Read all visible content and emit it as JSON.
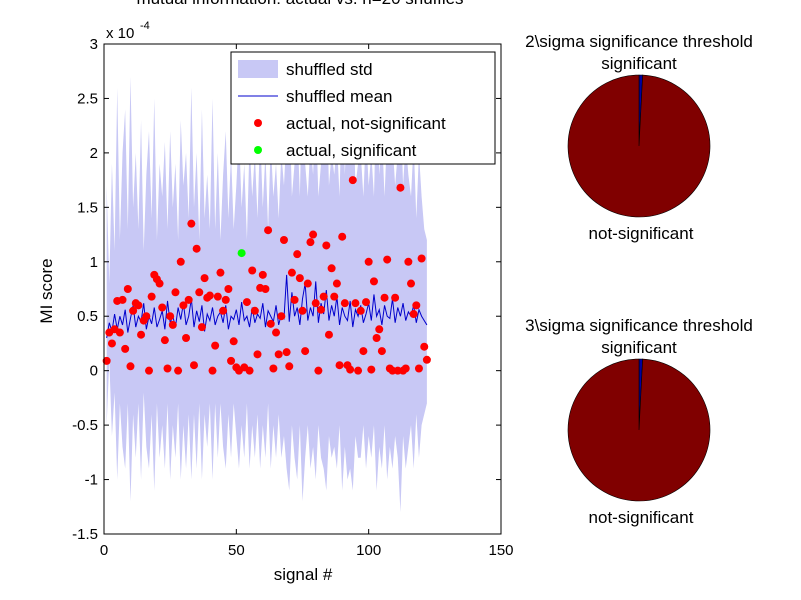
{
  "chart_data": [
    {
      "type": "line",
      "title": "mutual information: actual vs. n=20 shuffles",
      "xlabel": "signal #",
      "ylabel": "MI score",
      "y_exponent_label": "x 10",
      "y_exponent_power": "-4",
      "xlim": [
        0,
        150
      ],
      "ylim": [
        -1.5,
        3
      ],
      "x_ticks": [
        0,
        50,
        100,
        150
      ],
      "x_tick_labels": [
        "0",
        "50",
        "100",
        "150"
      ],
      "y_ticks": [
        -1.5,
        -1,
        -0.5,
        0,
        0.5,
        1,
        1.5,
        2,
        2.5,
        3
      ],
      "y_tick_labels": [
        "-1.5",
        "-1",
        "-0.5",
        "0",
        "0.5",
        "1",
        "1.5",
        "2",
        "2.5",
        "3"
      ],
      "legend": {
        "placement": "top-right",
        "entries": [
          "shuffled std",
          "shuffled mean",
          "actual, not-significant",
          "actual, significant"
        ]
      },
      "colors": {
        "std_band": "#c8c8f5",
        "mean_line": "#0000cc",
        "not_significant": "#ff0000",
        "significant": "#00ff00"
      },
      "series": [
        {
          "name": "shuffled mean",
          "x": [
            1,
            2,
            3,
            4,
            5,
            6,
            7,
            8,
            9,
            10,
            11,
            12,
            13,
            14,
            15,
            16,
            17,
            18,
            19,
            20,
            21,
            22,
            23,
            24,
            25,
            26,
            27,
            28,
            29,
            30,
            31,
            32,
            33,
            34,
            35,
            36,
            37,
            38,
            39,
            40,
            41,
            42,
            43,
            44,
            45,
            46,
            47,
            48,
            49,
            50,
            51,
            52,
            53,
            54,
            55,
            56,
            57,
            58,
            59,
            60,
            61,
            62,
            63,
            64,
            65,
            66,
            67,
            68,
            69,
            70,
            71,
            72,
            73,
            74,
            75,
            76,
            77,
            78,
            79,
            80,
            81,
            82,
            83,
            84,
            85,
            86,
            87,
            88,
            89,
            90,
            91,
            92,
            93,
            94,
            95,
            96,
            97,
            98,
            99,
            100,
            101,
            102,
            103,
            104,
            105,
            106,
            107,
            108,
            109,
            110,
            111,
            112,
            113,
            114,
            115,
            116,
            117,
            118,
            119,
            120,
            121,
            122
          ],
          "values": [
            0.3,
            0.44,
            0.36,
            0.52,
            0.38,
            0.5,
            0.42,
            0.56,
            0.35,
            0.48,
            0.6,
            0.4,
            0.5,
            0.45,
            0.62,
            0.38,
            0.5,
            0.43,
            0.58,
            0.4,
            0.47,
            0.55,
            0.38,
            0.64,
            0.44,
            0.5,
            0.4,
            0.58,
            0.47,
            0.62,
            0.42,
            0.5,
            0.66,
            0.4,
            0.55,
            0.45,
            0.6,
            0.36,
            0.52,
            0.46,
            0.58,
            0.42,
            0.5,
            0.54,
            0.44,
            0.6,
            0.38,
            0.5,
            0.47,
            0.56,
            0.42,
            0.63,
            0.46,
            0.5,
            0.4,
            0.58,
            0.44,
            0.52,
            0.48,
            0.62,
            0.4,
            0.55,
            0.5,
            0.45,
            0.6,
            0.42,
            0.52,
            0.48,
            0.88,
            0.45,
            0.72,
            0.5,
            0.58,
            0.42,
            0.66,
            0.8,
            0.46,
            0.58,
            0.5,
            0.82,
            0.44,
            0.62,
            0.52,
            0.74,
            0.46,
            0.6,
            0.5,
            0.68,
            0.42,
            0.58,
            0.5,
            0.46,
            0.64,
            0.4,
            0.56,
            0.5,
            0.6,
            0.44,
            0.52,
            0.62,
            0.46,
            0.7,
            0.5,
            0.56,
            0.42,
            0.6,
            0.5,
            0.48,
            0.66,
            0.44,
            0.58,
            0.5,
            0.62,
            0.46,
            0.54,
            0.5,
            0.6,
            0.44,
            0.56,
            0.5,
            0.46,
            0.42
          ],
          "std_upper": [
            1.7,
            0.8,
            1.9,
            1.1,
            2.6,
            1.2,
            2.0,
            2.4,
            1.3,
            2.7,
            1.5,
            2.0,
            1.3,
            2.3,
            1.1,
            1.8,
            2.2,
            1.4,
            2.5,
            1.2,
            1.9,
            1.6,
            2.1,
            1.3,
            2.2,
            1.5,
            1.9,
            1.2,
            2.3,
            1.7,
            2.0,
            1.4,
            2.6,
            1.5,
            2.0,
            1.2,
            2.4,
            1.4,
            1.8,
            1.3,
            2.5,
            1.3,
            2.0,
            1.2,
            1.8,
            2.2,
            1.4,
            2.0,
            1.3,
            1.7,
            2.2,
            1.5,
            1.9,
            1.2,
            2.1,
            1.6,
            2.0,
            1.4,
            2.2,
            1.5,
            2.0,
            1.3,
            2.1,
            1.6,
            1.9,
            1.4,
            2.0,
            1.7,
            2.2,
            2.5,
            1.6,
            1.9,
            2.3,
            1.6,
            2.7,
            1.9,
            1.6,
            2.1,
            1.8,
            2.4,
            1.6,
            1.9,
            2.1,
            2.6,
            1.7,
            2.0,
            1.8,
            2.1,
            1.6,
            2.6,
            1.8,
            2.4,
            2.2,
            2.6,
            1.7,
            1.9,
            2.0,
            1.6,
            2.2,
            1.7,
            2.0,
            1.6,
            2.6,
            1.8,
            2.2,
            1.6,
            2.2,
            1.9,
            2.1,
            1.7,
            2.0,
            2.5,
            1.7,
            2.1,
            1.8,
            1.6,
            2.1,
            1.4,
            2.0,
            1.6,
            1.3,
            1.2
          ],
          "std_lower": [
            -0.5,
            0.1,
            -0.6,
            -0.2,
            -1.0,
            -0.3,
            -0.7,
            -0.9,
            -0.3,
            -1.2,
            -0.4,
            -0.8,
            -0.3,
            -1.0,
            -0.2,
            -0.7,
            -0.9,
            -0.4,
            -1.1,
            -0.3,
            -0.8,
            -0.5,
            -0.9,
            -0.3,
            -1.0,
            -0.5,
            -0.8,
            -0.3,
            -1.0,
            -0.5,
            -0.9,
            -0.4,
            -1.0,
            -0.4,
            -0.9,
            -0.3,
            -1.0,
            -0.4,
            -0.7,
            -0.3,
            -1.0,
            -0.3,
            -0.8,
            -0.3,
            -0.7,
            -0.9,
            -0.4,
            -0.8,
            -0.3,
            -0.6,
            -0.9,
            -0.5,
            -0.8,
            -0.3,
            -0.9,
            -0.5,
            -0.8,
            -0.4,
            -0.9,
            -0.5,
            -0.8,
            -0.3,
            -0.9,
            -0.5,
            -0.8,
            -0.4,
            -0.8,
            -0.6,
            -0.9,
            -1.1,
            -0.5,
            -0.8,
            -1.0,
            -0.5,
            -1.2,
            -0.8,
            -0.5,
            -0.9,
            -0.7,
            -1.0,
            -0.5,
            -0.8,
            -0.9,
            -1.1,
            -0.6,
            -0.8,
            -0.7,
            -0.9,
            -0.5,
            -1.1,
            -0.7,
            -1.0,
            -0.9,
            -1.1,
            -0.6,
            -0.8,
            -0.8,
            -0.5,
            -0.9,
            -0.6,
            -0.8,
            -0.5,
            -1.1,
            -0.7,
            -0.9,
            -0.5,
            -1.0,
            -0.7,
            -0.9,
            -0.6,
            -0.8,
            -1.3,
            -0.6,
            -0.9,
            -0.7,
            -0.5,
            -0.9,
            -0.4,
            -0.8,
            -0.5,
            -0.4,
            -0.3
          ]
        },
        {
          "name": "actual, not-significant",
          "x": [
            1,
            2,
            3,
            4,
            5,
            6,
            7,
            8,
            9,
            10,
            11,
            12,
            13,
            14,
            15,
            16,
            17,
            18,
            19,
            20,
            21,
            22,
            23,
            24,
            25,
            26,
            27,
            28,
            29,
            30,
            31,
            32,
            33,
            34,
            35,
            36,
            37,
            38,
            39,
            40,
            41,
            42,
            43,
            44,
            45,
            46,
            47,
            48,
            49,
            50,
            51,
            53,
            54,
            55,
            56,
            57,
            58,
            59,
            60,
            61,
            62,
            63,
            64,
            65,
            66,
            67,
            68,
            69,
            70,
            71,
            72,
            73,
            74,
            75,
            76,
            77,
            78,
            79,
            80,
            81,
            82,
            83,
            84,
            85,
            86,
            87,
            88,
            89,
            90,
            91,
            92,
            93,
            94,
            95,
            96,
            97,
            98,
            99,
            100,
            101,
            102,
            103,
            104,
            105,
            106,
            107,
            108,
            109,
            110,
            111,
            112,
            113,
            114,
            115,
            116,
            117,
            118,
            119,
            120,
            121,
            122
          ],
          "values": [
            0.09,
            0.35,
            0.25,
            0.38,
            0.64,
            0.35,
            0.65,
            0.2,
            0.75,
            0.04,
            0.55,
            0.62,
            0.6,
            0.33,
            0.46,
            0.5,
            0.0,
            0.68,
            0.88,
            0.84,
            0.8,
            0.58,
            0.28,
            0.02,
            0.5,
            0.42,
            0.72,
            0.0,
            1.0,
            0.6,
            0.3,
            0.65,
            1.35,
            0.05,
            1.12,
            0.72,
            0.4,
            0.85,
            0.67,
            0.69,
            0.0,
            0.23,
            0.68,
            0.9,
            0.55,
            0.65,
            0.75,
            0.09,
            0.27,
            0.03,
            0.0,
            0.03,
            0.63,
            0.0,
            0.92,
            0.55,
            0.15,
            0.76,
            0.88,
            0.75,
            1.29,
            0.43,
            0.02,
            0.35,
            0.15,
            0.5,
            1.2,
            0.17,
            0.04,
            0.9,
            0.65,
            1.07,
            0.85,
            0.55,
            0.18,
            0.8,
            1.18,
            1.25,
            0.62,
            0.0,
            0.56,
            0.68,
            1.15,
            0.33,
            0.94,
            0.68,
            0.8,
            0.05,
            1.23,
            0.62,
            0.05,
            0.01,
            1.75,
            0.62,
            0.0,
            0.55,
            0.18,
            0.63,
            1.0,
            0.01,
            0.82,
            0.3,
            0.38,
            0.18,
            0.67,
            1.02,
            0.02,
            0.0,
            0.67,
            0.0,
            1.68,
            0.0,
            0.02,
            1.0,
            0.8,
            0.52,
            0.6,
            0.02,
            1.03,
            0.22,
            0.1
          ]
        },
        {
          "name": "actual, significant",
          "x": [
            52
          ],
          "values": [
            1.08
          ]
        }
      ]
    },
    {
      "type": "pie",
      "title": "2\\sigma significance threshold",
      "labels": [
        "significant",
        "not-significant"
      ],
      "values": [
        1,
        121
      ],
      "colors": [
        "#0000a0",
        "#800000"
      ]
    },
    {
      "type": "pie",
      "title": "3\\sigma significance threshold",
      "labels": [
        "significant",
        "not-significant"
      ],
      "values": [
        1,
        121
      ],
      "colors": [
        "#0000a0",
        "#800000"
      ]
    }
  ]
}
